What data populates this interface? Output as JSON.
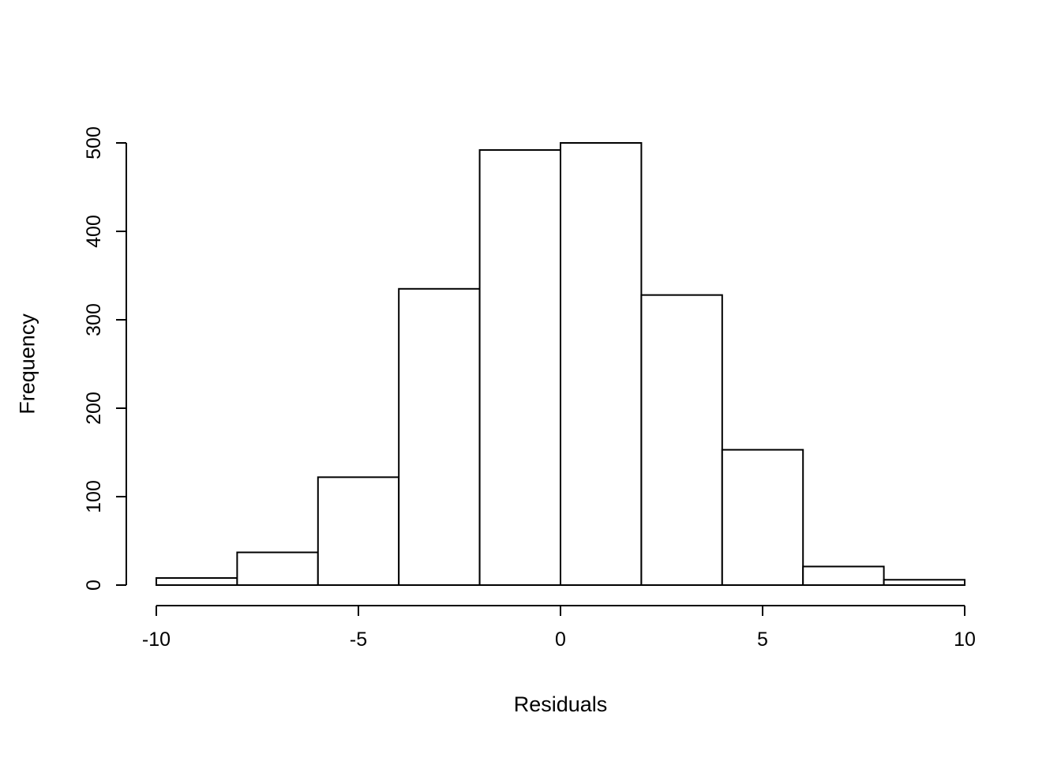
{
  "chart_data": {
    "type": "bar",
    "subtype": "histogram",
    "title": "",
    "xlabel": "Residuals",
    "ylabel": "Frequency",
    "bin_edges": [
      -10,
      -8,
      -6,
      -4,
      -2,
      0,
      2,
      4,
      6,
      8,
      10
    ],
    "counts": [
      8,
      37,
      122,
      335,
      492,
      500,
      328,
      153,
      21,
      6
    ],
    "xlim": [
      -10,
      10
    ],
    "ylim": [
      0,
      500
    ],
    "x_ticks": [
      -10,
      -5,
      0,
      5,
      10
    ],
    "y_ticks": [
      0,
      100,
      200,
      300,
      400,
      500
    ],
    "grid": false,
    "legend": "none",
    "bar_fill": "#ffffff",
    "bar_stroke": "#000000",
    "axis_color": "#000000",
    "background": "#ffffff"
  }
}
